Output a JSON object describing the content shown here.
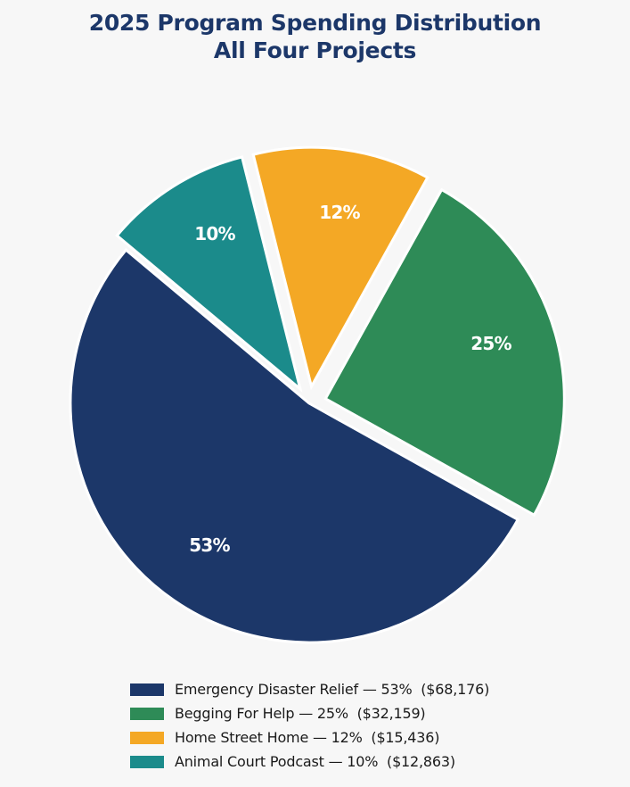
{
  "chart_data": {
    "type": "pie",
    "title": "2025 Program Spending Distribution",
    "subtitle": "All Four Projects",
    "categories": [
      "Emergency Disaster Relief",
      "Begging For Help",
      "Home Street Home",
      "Animal Court Podcast"
    ],
    "values": [
      68176,
      32159,
      15436,
      12863
    ],
    "percent_labels": [
      "53%",
      "25%",
      "12%",
      "10%"
    ],
    "colors": [
      "#1c3769",
      "#2e8b57",
      "#f4a825",
      "#1b8b8b"
    ],
    "exploded": [
      false,
      true,
      true,
      true
    ],
    "legend_position": "bottom",
    "legend": [
      "Emergency Disaster Relief — 53%  ($68,176)",
      "Begging For Help — 25%  ($32,159)",
      "Home Street Home — 12%  ($15,436)",
      "Animal Court Podcast — 10%  ($12,863)"
    ]
  },
  "title": {
    "line1": "2025 Program Spending Distribution",
    "line2": "All Four Projects"
  },
  "slices": [
    {
      "name": "Emergency Disaster Relief",
      "label": "53%",
      "color": "#1c3769"
    },
    {
      "name": "Begging For Help",
      "label": "25%",
      "color": "#2e8b57"
    },
    {
      "name": "Home Street Home",
      "label": "12%",
      "color": "#f4a825"
    },
    {
      "name": "Animal Court Podcast",
      "label": "10%",
      "color": "#1b8b8b"
    }
  ],
  "legend": [
    {
      "text": "Emergency Disaster Relief — 53%  ($68,176)",
      "color": "#1c3769"
    },
    {
      "text": "Begging For Help — 25%  ($32,159)",
      "color": "#2e8b57"
    },
    {
      "text": "Home Street Home — 12%  ($15,436)",
      "color": "#f4a825"
    },
    {
      "text": "Animal Court Podcast — 10%  ($12,863)",
      "color": "#1b8b8b"
    }
  ],
  "colors": {
    "background": "#f7f7f7",
    "title": "#1c3769",
    "slice_border": "#ffffff"
  }
}
